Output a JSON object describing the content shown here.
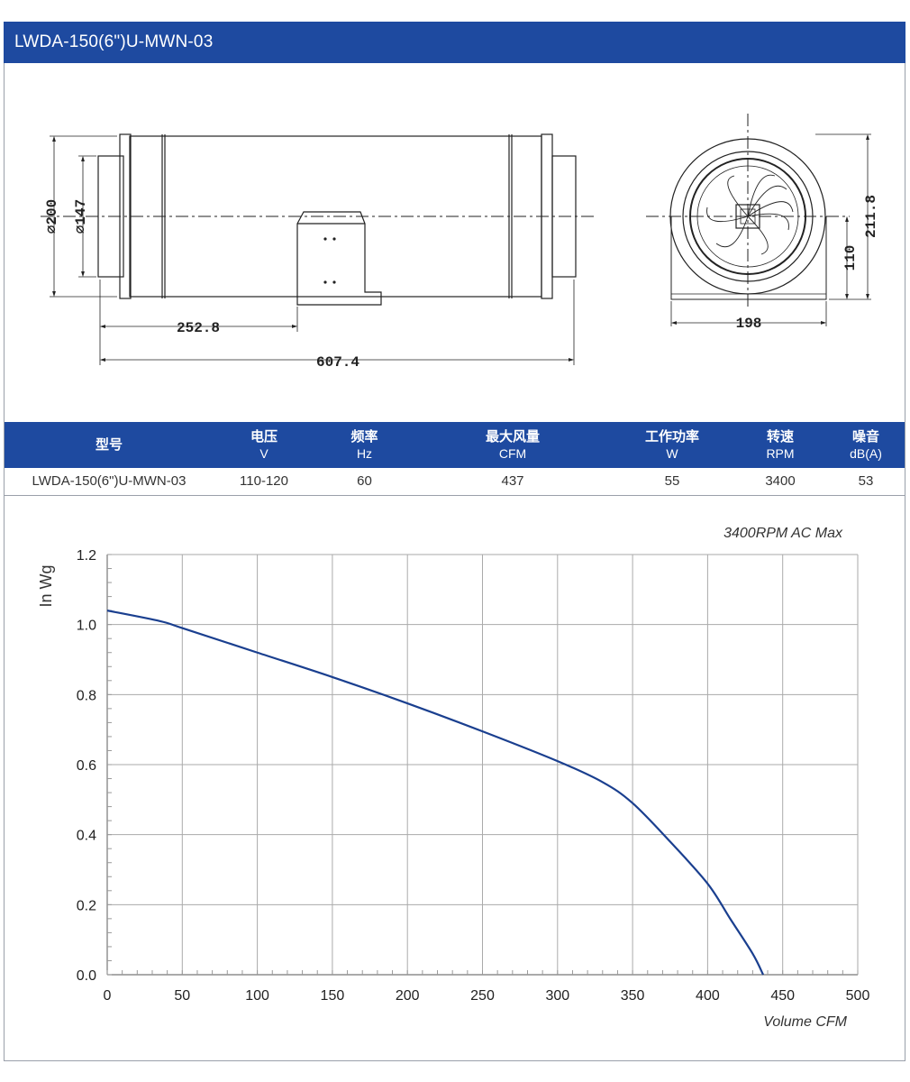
{
  "header": {
    "title": "LWDA-150(6\")U-MWN-03"
  },
  "drawing": {
    "dimensions": {
      "outer_diameter": "⌀200",
      "inner_diameter": "⌀147",
      "bracket_offset": "252.8",
      "total_length": "607.4",
      "width": "198",
      "total_height": "211.8",
      "center_height": "110"
    }
  },
  "specs": {
    "headers": [
      {
        "label": "型号",
        "unit": ""
      },
      {
        "label": "电压",
        "unit": "V"
      },
      {
        "label": "频率",
        "unit": "Hz"
      },
      {
        "label": "最大风量",
        "unit": "CFM"
      },
      {
        "label": "工作功率",
        "unit": "W"
      },
      {
        "label": "转速",
        "unit": "RPM"
      },
      {
        "label": "噪音",
        "unit": "dB(A)"
      }
    ],
    "row": [
      "LWDA-150(6\")U-MWN-03",
      "110-120",
      "60",
      "437",
      "55",
      "3400",
      "53"
    ]
  },
  "chart_data": {
    "type": "line",
    "title": "3400RPM AC Max",
    "xlabel": "Volume CFM",
    "ylabel": "In Wg",
    "xlim": [
      0,
      500
    ],
    "ylim": [
      0,
      1.2
    ],
    "xticks": [
      "0",
      "50",
      "100",
      "150",
      "200",
      "250",
      "300",
      "350",
      "400",
      "450",
      "500"
    ],
    "yticks": [
      "0.0",
      "0.2",
      "0.4",
      "0.6",
      "0.8",
      "1.0",
      "1.2"
    ],
    "grid": true,
    "line_color": "#1a3f8f",
    "series": [
      {
        "x": [
          0,
          35,
          50,
          100,
          150,
          200,
          250,
          300,
          330,
          350,
          375,
          400,
          415,
          430,
          437
        ],
        "y": [
          1.04,
          1.01,
          0.99,
          0.92,
          0.85,
          0.775,
          0.695,
          0.61,
          0.55,
          0.49,
          0.38,
          0.26,
          0.16,
          0.06,
          0.0
        ]
      }
    ]
  }
}
